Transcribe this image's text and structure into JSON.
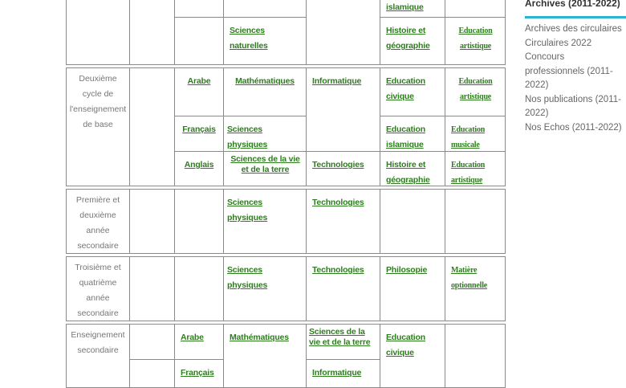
{
  "table": {
    "group0": {
      "col5_row0": "islamique",
      "col3_row1": "Sciences naturelles",
      "col5_row1": "Histoire et géographie",
      "col6_row1": "Education artistique"
    },
    "group1": {
      "label": "Deuxième cycle de l'enseignement de base",
      "rows": [
        {
          "c2": "Arabe",
          "c3": "Mathématiques",
          "c4": "Informatique",
          "c5": "Education civique",
          "c6": "Education artistique"
        },
        {
          "c2": "Français",
          "c3": "Sciences physiques",
          "c5": "Education islamique",
          "c6": "Education musicale"
        },
        {
          "c2": "Anglais",
          "c3": "Sciences de la vie et de la terre",
          "c4": "Technologies",
          "c5": "Histoire et géographie",
          "c6": "Education artistique"
        }
      ]
    },
    "group2": {
      "label": "Première et deuxième année secondaire",
      "c3": "Sciences physiques",
      "c4": "Technologies"
    },
    "group3": {
      "label": "Troisième et quatrième année secondaire",
      "c3": "Sciences physiques",
      "c4": "Technologies",
      "c5": "Philosopie",
      "c6": "Matière optionnelle"
    },
    "group4": {
      "label": "Enseignement secondaire",
      "r0c2": "Arabe",
      "c3": "Mathématiques",
      "r0c4": "Sciences de la vie et de la terre",
      "c5": "Education civique",
      "r1c2": "Français",
      "r1c4": "Informatique"
    }
  },
  "sidebar": {
    "title": "Archives (2011-2022)",
    "accent": "#2bb5cf",
    "items": [
      "Archives des circulaires",
      "Circulaires 2022",
      "Concours professionnels (2011-2022)",
      "Nos publications (2011-2022)",
      "Nos Echos (2011-2022)"
    ]
  }
}
